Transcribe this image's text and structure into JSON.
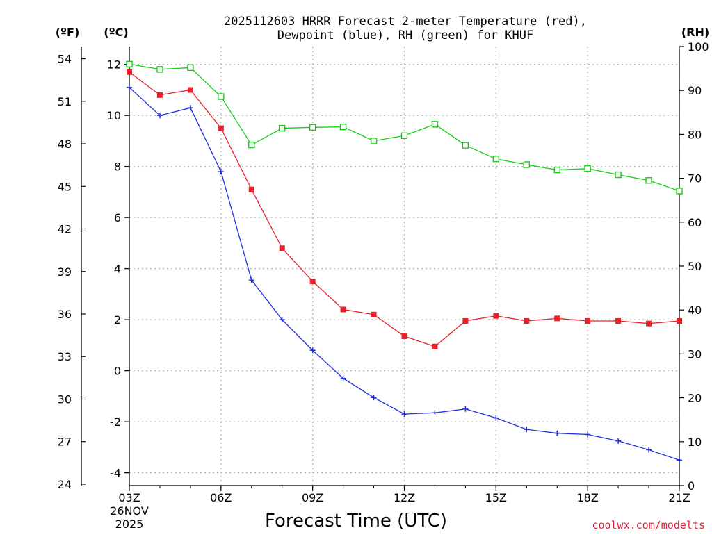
{
  "chart_data": {
    "type": "line",
    "title_line1": "2025112603 HRRR Forecast 2-meter Temperature (red),",
    "title_line2": "Dewpoint (blue), RH (green) for KHUF",
    "xlabel": "Forecast Time (UTC)",
    "credit": "coolwx.com/modelts",
    "left_unit_f": "(ºF)",
    "left_unit_c": "(ºC)",
    "right_unit": "(RH)",
    "x_hours": [
      3,
      4,
      5,
      6,
      7,
      8,
      9,
      10,
      11,
      12,
      13,
      14,
      15,
      16,
      17,
      18,
      19,
      20,
      21
    ],
    "x_ticks": [
      {
        "hour": 3,
        "label": "03Z"
      },
      {
        "hour": 6,
        "label": "06Z"
      },
      {
        "hour": 9,
        "label": "09Z"
      },
      {
        "hour": 12,
        "label": "12Z"
      },
      {
        "hour": 15,
        "label": "15Z"
      },
      {
        "hour": 18,
        "label": "18Z"
      },
      {
        "hour": 21,
        "label": "21Z"
      }
    ],
    "x_date_line1": "26NOV",
    "x_date_line2": "2025",
    "xlim": [
      3,
      21
    ],
    "celsius_lim": [
      -4.5,
      12.7
    ],
    "celsius_ticks": [
      -4,
      -2,
      0,
      2,
      4,
      6,
      8,
      10,
      12
    ],
    "fahrenheit_ticks": [
      24,
      27,
      30,
      33,
      36,
      39,
      42,
      45,
      48,
      51,
      54
    ],
    "rh_lim": [
      0,
      100
    ],
    "rh_ticks": [
      0,
      10,
      20,
      30,
      40,
      50,
      60,
      70,
      80,
      90,
      100
    ],
    "series": [
      {
        "name": "Temperature",
        "axis": "celsius",
        "color": "#e8202a",
        "marker": "filled-square",
        "values": [
          11.7,
          10.8,
          11.0,
          9.5,
          7.1,
          4.8,
          3.5,
          2.4,
          2.2,
          1.35,
          0.95,
          1.95,
          2.15,
          1.95,
          2.05,
          1.95,
          1.95,
          1.85,
          1.95
        ]
      },
      {
        "name": "Dewpoint",
        "axis": "celsius",
        "color": "#2030e0",
        "marker": "plus",
        "values": [
          11.1,
          10.0,
          10.3,
          7.8,
          3.55,
          2.0,
          0.8,
          -0.3,
          -1.05,
          -1.7,
          -1.65,
          -1.5,
          -1.85,
          -2.3,
          -2.45,
          -2.5,
          -2.75,
          -3.1,
          -3.5
        ]
      },
      {
        "name": "RH",
        "axis": "rh",
        "color": "#10d010",
        "marker": "open-square",
        "values": [
          96.0,
          94.8,
          95.2,
          88.6,
          77.6,
          81.4,
          81.6,
          81.7,
          78.5,
          79.7,
          82.3,
          77.5,
          74.4,
          73.1,
          71.9,
          72.2,
          70.8,
          69.5,
          67.1
        ]
      }
    ]
  }
}
